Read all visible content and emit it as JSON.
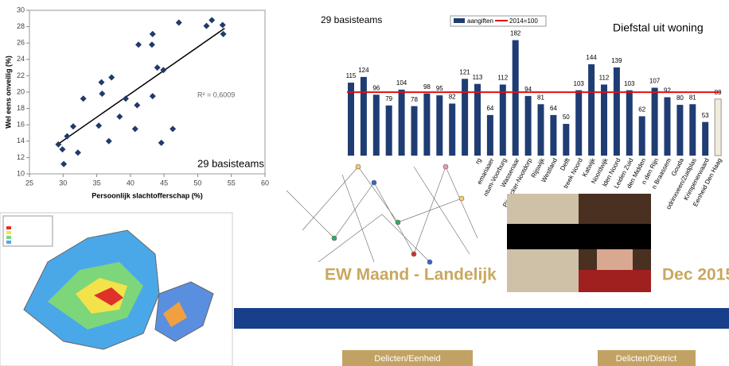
{
  "chart_data": [
    {
      "type": "scatter",
      "x_label": "Persoonlijk slachtofferschap (%)",
      "y_label": "Wel eens onveilig (%)",
      "annotations": [
        "R² = 0,6009",
        "29 basisteams"
      ],
      "color": "#1f3b6b",
      "x": [
        29.3,
        29.9,
        30.1,
        30.6,
        31.5,
        32.2,
        33.0,
        35.3,
        35.7,
        35.8,
        36.8,
        37.2,
        38.4,
        39.3,
        40.7,
        41.0,
        41.2,
        43.2,
        43.3,
        43.3,
        44.0,
        44.6,
        44.9,
        46.3,
        47.2,
        51.3,
        52.1,
        53.7,
        53.8
      ],
      "y": [
        13.6,
        13.0,
        11.2,
        14.6,
        15.8,
        12.6,
        19.2,
        15.9,
        21.2,
        19.8,
        14.0,
        21.8,
        17.0,
        19.2,
        15.5,
        18.4,
        25.8,
        25.8,
        27.1,
        19.5,
        23.0,
        13.8,
        22.7,
        15.5,
        28.5,
        28.1,
        28.8,
        28.2,
        27.1
      ],
      "trendline": {
        "x": [
          29,
          54
        ],
        "y": [
          13.5,
          27.8
        ],
        "color": "#000000"
      },
      "xlim": [
        25,
        60
      ],
      "xticks": [
        25,
        30,
        35,
        40,
        45,
        50,
        55,
        60
      ],
      "ylim": [
        10,
        30
      ],
      "yticks": [
        10,
        12,
        14,
        16,
        18,
        20,
        22,
        24,
        26,
        28,
        30
      ]
    },
    {
      "type": "bar",
      "title": "Diefstal uit woning",
      "subtitle": "29 basisteams",
      "categories": [
        null,
        null,
        null,
        null,
        null,
        null,
        null,
        null,
        null,
        null,
        "rg",
        "emariaaer",
        "ntum-Voorburg",
        "Wassenaar",
        "Pijnacker-Nootdorp",
        "Rijswijk",
        "Westland",
        "Delft",
        "treek Noord",
        "Katwijk",
        "Noordwijk",
        "lden Noord",
        "Leiden Zuid",
        "den Midden",
        "n den Rijn",
        "n Braassem",
        "Gouda",
        "odrinxveen/Zuidplas",
        "Krimpenerwaard",
        "Eenheid Den Haag"
      ],
      "series": [
        {
          "name": "aangiften",
          "color": "#1f3d73",
          "values": [
            115,
            124,
            96,
            79,
            104,
            78,
            98,
            95,
            82,
            121,
            113,
            64,
            112,
            182,
            94,
            81,
            64,
            50,
            103,
            144,
            112,
            139,
            103,
            62,
            107,
            92,
            80,
            81,
            53,
            89
          ],
          "colors": [
            "#1f3d73",
            "#1f3d73",
            "#1f3d73",
            "#1f3d73",
            "#1f3d73",
            "#1f3d73",
            "#1f3d73",
            "#1f3d73",
            "#1f3d73",
            "#1f3d73",
            "#1f3d73",
            "#1f3d73",
            "#1f3d73",
            "#1f3d73",
            "#1f3d73",
            "#1f3d73",
            "#1f3d73",
            "#1f3d73",
            "#1f3d73",
            "#1f3d73",
            "#1f3d73",
            "#1f3d73",
            "#1f3d73",
            "#1f3d73",
            "#1f3d73",
            "#1f3d73",
            "#1f3d73",
            "#1f3d73",
            "#1f3d73",
            "#f2ecdc"
          ]
        }
      ],
      "reference_line": {
        "name": "2014=100",
        "value": 100,
        "color": "#e01010"
      },
      "ylim": [
        0,
        190
      ]
    }
  ],
  "banners": {
    "title": "EW Maand - Landelijk",
    "date": "Dec 2015",
    "button_1": "Delicten/Eenheid",
    "button_2": "Delicten/District"
  }
}
